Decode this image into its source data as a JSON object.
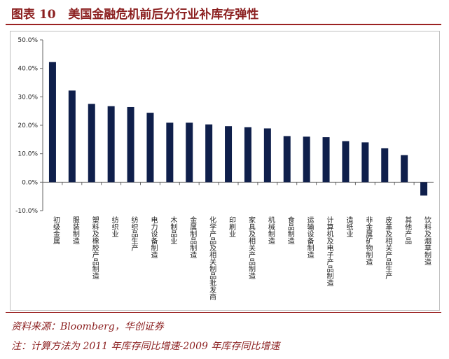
{
  "header": {
    "figure_label": "图表 10",
    "title": "美国金融危机前后分行业补库存弹性"
  },
  "footer": {
    "source": "资料来源：Bloomberg，华创证券",
    "note": "注：计算方法为 2011 年库存同比增速-2009 年库存同比增速"
  },
  "colors": {
    "bar": "#0f1f4b",
    "accent": "#8b1f1f"
  },
  "chart_data": {
    "type": "bar",
    "title": "",
    "xlabel": "",
    "ylabel": "",
    "ylim": [
      -10,
      50
    ],
    "ytick_step": 10,
    "ytick_format": "0.0%",
    "grid": false,
    "categories": [
      "初级金属",
      "服装制造",
      "塑料及橡胶产品制造",
      "纺织业",
      "纺织品生产",
      "电力设备制造",
      "木制品业",
      "金属制品制造",
      "化学产品及相关制品批发商",
      "印刷业",
      "家具及相关产品制造",
      "机械制造",
      "食品制造",
      "运输设备制造",
      "计算机及电子产品制造",
      "造纸业",
      "非金属矿物制造",
      "皮革及相关产品生产",
      "其他产品",
      "饮料及烟草制造"
    ],
    "values": [
      42.2,
      32.2,
      27.5,
      26.7,
      26.4,
      24.4,
      20.9,
      20.9,
      20.3,
      19.7,
      19.3,
      18.9,
      16.2,
      16.0,
      15.8,
      14.4,
      14.0,
      11.9,
      9.5,
      -4.7
    ]
  }
}
